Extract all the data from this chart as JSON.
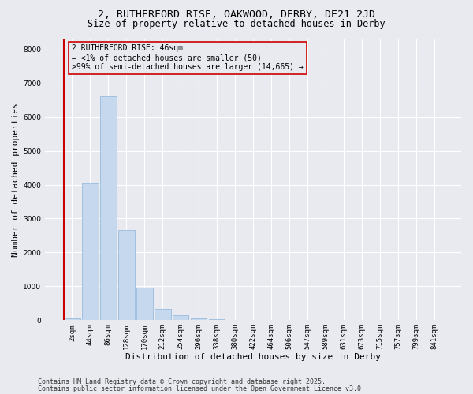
{
  "title_line1": "2, RUTHERFORD RISE, OAKWOOD, DERBY, DE21 2JD",
  "title_line2": "Size of property relative to detached houses in Derby",
  "xlabel": "Distribution of detached houses by size in Derby",
  "ylabel": "Number of detached properties",
  "background_color": "#e8eaf0",
  "bar_color": "#c5d8ee",
  "bar_edge_color": "#8ab4d8",
  "categories": [
    "2sqm",
    "44sqm",
    "86sqm",
    "128sqm",
    "170sqm",
    "212sqm",
    "254sqm",
    "296sqm",
    "338sqm",
    "380sqm",
    "422sqm",
    "464sqm",
    "506sqm",
    "547sqm",
    "589sqm",
    "631sqm",
    "673sqm",
    "715sqm",
    "757sqm",
    "799sqm",
    "841sqm"
  ],
  "values": [
    50,
    4050,
    6630,
    2650,
    970,
    340,
    140,
    60,
    30,
    0,
    0,
    0,
    0,
    0,
    0,
    0,
    0,
    0,
    0,
    0,
    0
  ],
  "ylim": [
    0,
    8300
  ],
  "yticks": [
    0,
    1000,
    2000,
    3000,
    4000,
    5000,
    6000,
    7000,
    8000
  ],
  "annotation_text": "2 RUTHERFORD RISE: 46sqm\n← <1% of detached houses are smaller (50)\n>99% of semi-detached houses are larger (14,665) →",
  "annotation_box_color": "#cc0000",
  "footer_line1": "Contains HM Land Registry data © Crown copyright and database right 2025.",
  "footer_line2": "Contains public sector information licensed under the Open Government Licence v3.0.",
  "grid_color": "#ffffff",
  "title_fontsize": 9.5,
  "subtitle_fontsize": 8.5,
  "axis_label_fontsize": 8,
  "tick_fontsize": 6.5,
  "annotation_fontsize": 7,
  "footer_fontsize": 6
}
